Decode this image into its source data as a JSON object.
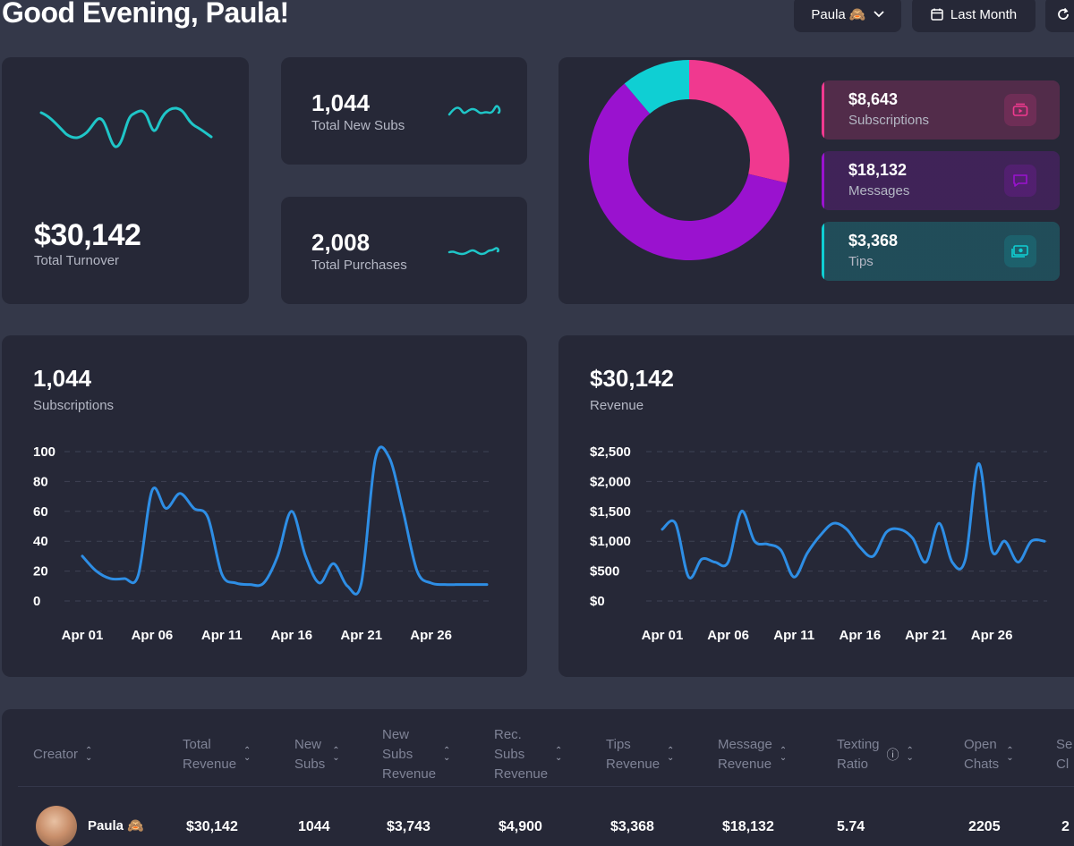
{
  "header": {
    "greeting": "Good Evening, Paula!",
    "user_select": "Paula 🙈",
    "period_select": "Last Month"
  },
  "turnover": {
    "value": "$30,142",
    "label": "Total Turnover"
  },
  "new_subs": {
    "value": "1,044",
    "label": "Total New Subs"
  },
  "purchases": {
    "value": "2,008",
    "label": "Total Purchases"
  },
  "breakdown": {
    "items": [
      {
        "value": "$8,643",
        "label": "Subscriptions",
        "color": "#f0398f",
        "icon": "video-icon"
      },
      {
        "value": "$18,132",
        "label": "Messages",
        "color": "#9a12cf",
        "icon": "message-icon"
      },
      {
        "value": "$3,368",
        "label": "Tips",
        "color": "#0fcfd3",
        "icon": "money-icon"
      }
    ]
  },
  "subs_chart": {
    "value": "1,044",
    "label": "Subscriptions"
  },
  "revenue_chart": {
    "value": "$30,142",
    "label": "Revenue"
  },
  "chart_data": [
    {
      "type": "pie",
      "categories": [
        "Subscriptions",
        "Messages",
        "Tips"
      ],
      "values": [
        8643,
        18132,
        3368
      ],
      "colors": [
        "#f0398f",
        "#9a12cf",
        "#0fcfd3"
      ]
    },
    {
      "type": "line",
      "title": "Subscriptions",
      "ylim": [
        0,
        100
      ],
      "yticks": [
        "100",
        "80",
        "60",
        "40",
        "20",
        "0"
      ],
      "xticks": [
        "Apr 01",
        "Apr 06",
        "Apr 11",
        "Apr 16",
        "Apr 21",
        "Apr 26"
      ],
      "x": [
        "Apr 01",
        "Apr 02",
        "Apr 03",
        "Apr 04",
        "Apr 05",
        "Apr 06",
        "Apr 07",
        "Apr 08",
        "Apr 09",
        "Apr 10",
        "Apr 11",
        "Apr 12",
        "Apr 13",
        "Apr 14",
        "Apr 15",
        "Apr 16",
        "Apr 17",
        "Apr 18",
        "Apr 19",
        "Apr 20",
        "Apr 21",
        "Apr 22",
        "Apr 23",
        "Apr 24",
        "Apr 25",
        "Apr 26",
        "Apr 27",
        "Apr 28",
        "Apr 29",
        "Apr 30"
      ],
      "series": [
        {
          "values": [
            30,
            20,
            15,
            15,
            17,
            74,
            62,
            72,
            62,
            56,
            18,
            12,
            11,
            12,
            30,
            60,
            30,
            12,
            25,
            10,
            12,
            95,
            96,
            60,
            20,
            12,
            11,
            11,
            11,
            11
          ]
        }
      ]
    },
    {
      "type": "line",
      "title": "Revenue",
      "ylim": [
        0,
        2500
      ],
      "yticks": [
        "$2,500",
        "$2,000",
        "$1,500",
        "$1,000",
        "$500",
        "$0"
      ],
      "xticks": [
        "Apr 01",
        "Apr 06",
        "Apr 11",
        "Apr 16",
        "Apr 21",
        "Apr 26"
      ],
      "x": [
        "Apr 01",
        "Apr 02",
        "Apr 03",
        "Apr 04",
        "Apr 05",
        "Apr 06",
        "Apr 07",
        "Apr 08",
        "Apr 09",
        "Apr 10",
        "Apr 11",
        "Apr 12",
        "Apr 13",
        "Apr 14",
        "Apr 15",
        "Apr 16",
        "Apr 17",
        "Apr 18",
        "Apr 19",
        "Apr 20",
        "Apr 21",
        "Apr 22",
        "Apr 23",
        "Apr 24",
        "Apr 25",
        "Apr 26",
        "Apr 27",
        "Apr 28",
        "Apr 29",
        "Apr 30"
      ],
      "series": [
        {
          "values": [
            1200,
            1300,
            400,
            700,
            650,
            650,
            1500,
            1000,
            950,
            850,
            400,
            800,
            1100,
            1300,
            1200,
            900,
            750,
            1150,
            1200,
            1050,
            650,
            1300,
            650,
            700,
            2300,
            850,
            1000,
            650,
            1000,
            1000
          ]
        }
      ]
    }
  ],
  "table": {
    "headers": [
      [
        "Creator"
      ],
      [
        "Total",
        "Revenue"
      ],
      [
        "New",
        "Subs"
      ],
      [
        "New",
        "Subs",
        "Revenue"
      ],
      [
        "Rec.",
        "Subs",
        "Revenue"
      ],
      [
        "Tips",
        "Revenue"
      ],
      [
        "Message",
        "Revenue"
      ],
      [
        "Texting",
        "Ratio"
      ],
      [
        "Open",
        "Chats"
      ],
      [
        "Se",
        "Cl"
      ]
    ],
    "rows": [
      {
        "creator": "Paula 🙈",
        "cells": [
          "$30,142",
          "1044",
          "$3,743",
          "$4,900",
          "$3,368",
          "$18,132",
          "5.74",
          "2205",
          "2"
        ]
      }
    ]
  }
}
